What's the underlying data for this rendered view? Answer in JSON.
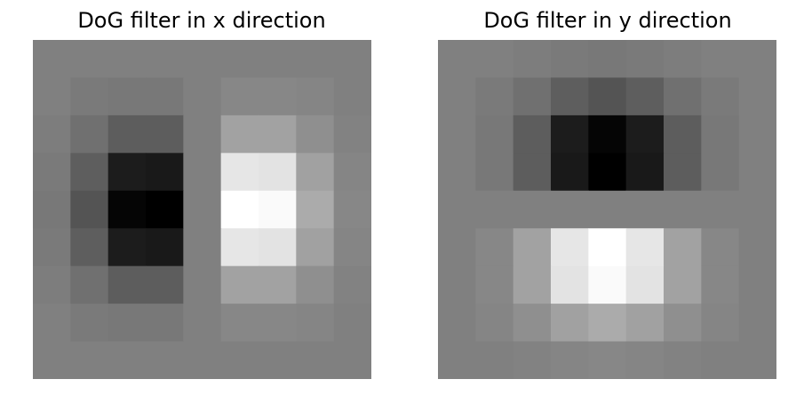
{
  "chart_data": [
    {
      "type": "heatmap",
      "title": "DoG filter in x direction",
      "colormap": "gray",
      "grid": false,
      "axes_visible": false,
      "value_range": [
        -1,
        1
      ],
      "rows": 9,
      "cols": 9,
      "values": [
        [
          0.0,
          0.0,
          0.0,
          0.0,
          0.0,
          0.0,
          0.0,
          0.0,
          0.0
        ],
        [
          0.0,
          -0.04,
          -0.06,
          -0.06,
          0.0,
          0.06,
          0.06,
          0.04,
          0.0
        ],
        [
          -0.02,
          -0.12,
          -0.27,
          -0.27,
          0.0,
          0.27,
          0.27,
          0.12,
          0.02
        ],
        [
          -0.04,
          -0.26,
          -0.78,
          -0.8,
          0.0,
          0.8,
          0.78,
          0.26,
          0.04
        ],
        [
          -0.06,
          -0.34,
          -0.96,
          -1.0,
          0.0,
          1.0,
          0.96,
          0.34,
          0.06
        ],
        [
          -0.04,
          -0.26,
          -0.78,
          -0.8,
          0.0,
          0.8,
          0.78,
          0.26,
          0.04
        ],
        [
          -0.02,
          -0.12,
          -0.27,
          -0.27,
          0.0,
          0.27,
          0.27,
          0.12,
          0.02
        ],
        [
          0.0,
          -0.04,
          -0.06,
          -0.06,
          0.0,
          0.06,
          0.06,
          0.04,
          0.0
        ],
        [
          0.0,
          0.0,
          0.0,
          0.0,
          0.0,
          0.0,
          0.0,
          0.0,
          0.0
        ]
      ]
    },
    {
      "type": "heatmap",
      "title": "DoG filter in y direction",
      "colormap": "gray",
      "grid": false,
      "axes_visible": false,
      "value_range": [
        -1,
        1
      ],
      "rows": 9,
      "cols": 9,
      "values": [
        [
          0.0,
          0.0,
          -0.02,
          -0.04,
          -0.06,
          -0.04,
          -0.02,
          0.0,
          0.0
        ],
        [
          0.0,
          -0.04,
          -0.12,
          -0.26,
          -0.34,
          -0.26,
          -0.12,
          -0.04,
          0.0
        ],
        [
          0.0,
          -0.06,
          -0.27,
          -0.78,
          -0.96,
          -0.78,
          -0.27,
          -0.06,
          0.0
        ],
        [
          0.0,
          -0.06,
          -0.27,
          -0.8,
          -1.0,
          -0.8,
          -0.27,
          -0.06,
          0.0
        ],
        [
          0.0,
          0.0,
          0.0,
          0.0,
          0.0,
          0.0,
          0.0,
          0.0,
          0.0
        ],
        [
          0.0,
          0.06,
          0.27,
          0.8,
          1.0,
          0.8,
          0.27,
          0.06,
          0.0
        ],
        [
          0.0,
          0.06,
          0.27,
          0.78,
          0.96,
          0.78,
          0.27,
          0.06,
          0.0
        ],
        [
          0.0,
          0.04,
          0.12,
          0.26,
          0.34,
          0.26,
          0.12,
          0.04,
          0.0
        ],
        [
          0.0,
          0.0,
          0.02,
          0.04,
          0.06,
          0.04,
          0.02,
          0.0,
          0.0
        ]
      ]
    }
  ]
}
